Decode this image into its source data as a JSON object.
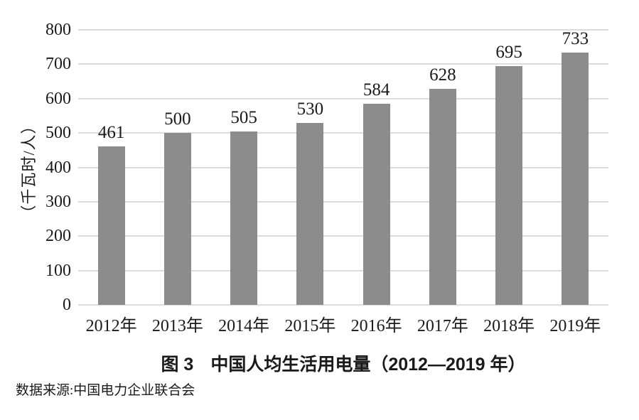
{
  "chart_data": {
    "type": "bar",
    "title": "图 3  中国人均生活用电量（2012—2019 年）",
    "categories": [
      "2012年",
      "2013年",
      "2014年",
      "2015年",
      "2016年",
      "2017年",
      "2018年",
      "2019年"
    ],
    "values": [
      461,
      500,
      505,
      530,
      584,
      628,
      695,
      733
    ],
    "xlabel": "",
    "ylabel": "（千瓦时/人）",
    "ylim": [
      0,
      800
    ],
    "yticks": [
      0,
      100,
      200,
      300,
      400,
      500,
      600,
      700,
      800
    ],
    "grid": "horizontal",
    "legend": "none",
    "value_labels": true,
    "bar_color": "#8c8c8c"
  },
  "caption": {
    "figure_label": "图 3",
    "title": "中国人均生活用电量（2012—2019 年）"
  },
  "source_note": "数据来源:中国电力企业联合会",
  "colors": {
    "bar": "#8c8c8c",
    "gridline": "#dcdcdc",
    "text": "#1a1a1a",
    "background": "#ffffff"
  }
}
